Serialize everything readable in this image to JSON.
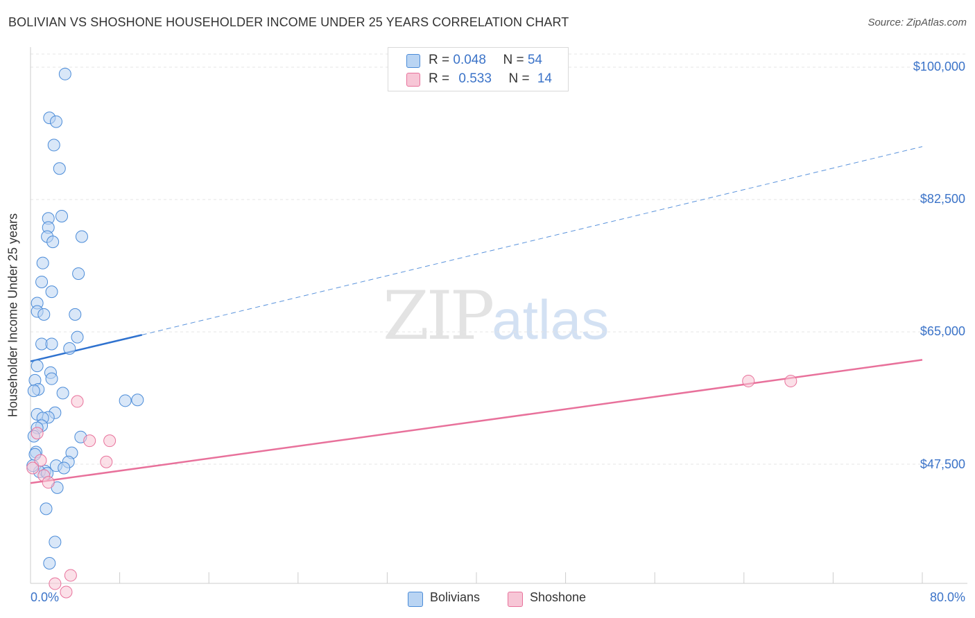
{
  "title": "BOLIVIAN VS SHOSHONE HOUSEHOLDER INCOME UNDER 25 YEARS CORRELATION CHART",
  "source": "Source: ZipAtlas.com",
  "watermark": {
    "zip": "ZIP",
    "atlas": "atlas"
  },
  "legend_top": {
    "bolivians": {
      "r_label": "R = ",
      "r_value": "0.048",
      "n_label": "N = ",
      "n_value": "54"
    },
    "shoshone": {
      "r_label": "R = ",
      "r_value": "0.533",
      "n_label": "N = ",
      "n_value": "14"
    }
  },
  "legend_bottom": {
    "bolivians": "Bolivians",
    "shoshone": "Shoshone"
  },
  "colors": {
    "blue": "#4a8bd8",
    "blue_fill": "#b9d4f3",
    "pink": "#e8719b",
    "pink_fill": "#f7c6d6",
    "axis_text": "#3b73c8"
  },
  "chart_data": {
    "type": "scatter",
    "title": "BOLIVIAN VS SHOSHONE HOUSEHOLDER INCOME UNDER 25 YEARS CORRELATION CHART",
    "xlabel": "",
    "ylabel": "Householder Income Under 25 years",
    "xlim": [
      0,
      80
    ],
    "ylim": [
      31000,
      102000
    ],
    "x_tick_labels": [
      "0.0%",
      "80.0%"
    ],
    "y_ticks": [
      47500,
      65000,
      82500,
      100000
    ],
    "y_tick_labels": [
      "$47,500",
      "$65,000",
      "$82,500",
      "$100,000"
    ],
    "series": [
      {
        "name": "Bolivians",
        "points": [
          [
            3.1,
            99100
          ],
          [
            1.7,
            93300
          ],
          [
            2.3,
            92800
          ],
          [
            2.1,
            89700
          ],
          [
            2.6,
            86600
          ],
          [
            2.8,
            80300
          ],
          [
            1.6,
            80000
          ],
          [
            1.6,
            78800
          ],
          [
            1.5,
            77600
          ],
          [
            4.6,
            77600
          ],
          [
            2.0,
            76900
          ],
          [
            1.1,
            74100
          ],
          [
            4.3,
            72700
          ],
          [
            1.0,
            71600
          ],
          [
            1.9,
            70300
          ],
          [
            0.6,
            68800
          ],
          [
            0.6,
            67700
          ],
          [
            1.2,
            67300
          ],
          [
            4.0,
            67300
          ],
          [
            4.2,
            64300
          ],
          [
            1.0,
            63400
          ],
          [
            1.9,
            63400
          ],
          [
            3.5,
            62800
          ],
          [
            0.6,
            60500
          ],
          [
            1.8,
            59600
          ],
          [
            1.9,
            58800
          ],
          [
            0.4,
            58600
          ],
          [
            0.7,
            57400
          ],
          [
            0.3,
            57200
          ],
          [
            2.9,
            56900
          ],
          [
            8.5,
            55900
          ],
          [
            9.6,
            56000
          ],
          [
            2.2,
            54300
          ],
          [
            0.6,
            54100
          ],
          [
            1.6,
            53700
          ],
          [
            1.1,
            53600
          ],
          [
            1.0,
            52600
          ],
          [
            0.6,
            52300
          ],
          [
            0.3,
            51200
          ],
          [
            4.5,
            51100
          ],
          [
            0.5,
            49100
          ],
          [
            3.7,
            49000
          ],
          [
            3.4,
            47800
          ],
          [
            2.3,
            47300
          ],
          [
            3.0,
            47000
          ],
          [
            1.3,
            46600
          ],
          [
            0.8,
            46500
          ],
          [
            2.4,
            44400
          ],
          [
            1.4,
            41600
          ],
          [
            2.2,
            37200
          ],
          [
            1.7,
            34400
          ],
          [
            0.2,
            47300
          ],
          [
            0.4,
            48800
          ],
          [
            1.5,
            46300
          ]
        ]
      },
      {
        "name": "Shoshone",
        "points": [
          [
            4.2,
            55800
          ],
          [
            0.6,
            51600
          ],
          [
            5.3,
            50600
          ],
          [
            7.1,
            50600
          ],
          [
            0.9,
            48000
          ],
          [
            6.8,
            47800
          ],
          [
            0.2,
            47000
          ],
          [
            1.2,
            46000
          ],
          [
            1.6,
            45100
          ],
          [
            3.6,
            32800
          ],
          [
            2.2,
            31700
          ],
          [
            3.2,
            30600
          ],
          [
            64.4,
            58500
          ],
          [
            68.2,
            58500
          ]
        ]
      }
    ],
    "trend_lines": [
      {
        "series": "Bolivians",
        "x": [
          0,
          10
        ],
        "y": [
          61100,
          64600
        ],
        "dashed_extension_to_x": 80,
        "y_at_80": 89500
      },
      {
        "series": "Shoshone",
        "x": [
          0,
          80
        ],
        "y": [
          45000,
          61300
        ]
      }
    ],
    "grid": true,
    "legend": "top-center"
  }
}
